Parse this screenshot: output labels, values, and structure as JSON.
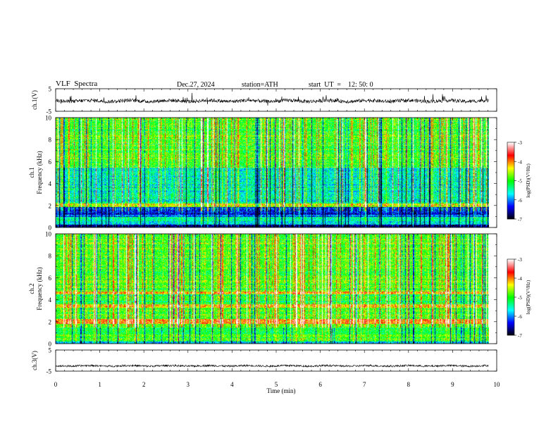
{
  "header": {
    "title": "VLF  Spectra",
    "date": "Dec.27, 2024",
    "station": "station=ATH",
    "start_ut": "start  UT  =    12: 50: 0"
  },
  "chart_data": [
    {
      "type": "line",
      "name": "ch1_waveform",
      "ylabel": "ch.1(V)",
      "y_ticks": [
        "5",
        "-5"
      ],
      "ylim": [
        -5,
        5
      ],
      "xlim": [
        0,
        10
      ],
      "data_extent_min": 9.82,
      "baseline": -0.4
    },
    {
      "type": "heatmap",
      "name": "ch1_spectrogram",
      "ylabel": "Frequency  (kHz)",
      "channel_label": "ch.1",
      "y_ticks": [
        "0",
        "2",
        "4",
        "6",
        "8",
        "10"
      ],
      "ylim": [
        0,
        10
      ],
      "xlim": [
        0,
        10
      ],
      "colorbar_label": "log(PSD)(V²/Hz)",
      "colorbar_ticks": [
        "-3",
        "-4",
        "-5",
        "-6",
        "-7"
      ],
      "colorbar_range": [
        -7,
        -3
      ],
      "features": [
        {
          "desc": "quiet band",
          "freq_khz": [
            1.0,
            1.8
          ],
          "level": -6.2
        },
        {
          "desc": "line",
          "freq_khz": 2.05,
          "level": -4.5
        },
        {
          "desc": "strong band",
          "freq_khz": [
            0.0,
            0.3
          ],
          "level": -7.0
        }
      ]
    },
    {
      "type": "heatmap",
      "name": "ch2_spectrogram",
      "ylabel": "Frequency  (kHz)",
      "channel_label": "ch.2",
      "y_ticks": [
        "0",
        "2",
        "4",
        "6",
        "8",
        "10"
      ],
      "ylim": [
        0,
        10
      ],
      "xlim": [
        0,
        10
      ],
      "colorbar_label": "log(PSD)(V²/Hz)",
      "colorbar_ticks": [
        "-3",
        "-4",
        "-5",
        "-6",
        "-7"
      ],
      "colorbar_range": [
        -7,
        -3
      ],
      "features": [
        {
          "desc": "strong line",
          "freq_khz": 2.0,
          "level": -3.8
        },
        {
          "desc": "line",
          "freq_khz": 4.6,
          "level": -4.2
        },
        {
          "desc": "line",
          "freq_khz": 3.5,
          "level": -4.4
        }
      ]
    },
    {
      "type": "line",
      "name": "ch3_waveform",
      "ylabel": "ch.3(V)",
      "y_ticks": [
        "5",
        "-5"
      ],
      "ylim": [
        -5,
        5
      ],
      "xlim": [
        0,
        10
      ],
      "data_extent_min": 9.82,
      "baseline": -2.5
    }
  ],
  "xaxis": {
    "label": "Time  (min)",
    "ticks": [
      "0",
      "1",
      "2",
      "3",
      "4",
      "5",
      "6",
      "7",
      "8",
      "9",
      "10"
    ]
  },
  "colors": {
    "colormap": [
      "#000000",
      "#0000ff",
      "#00ffff",
      "#00ff00",
      "#ffff00",
      "#ff0000",
      "#ffffff"
    ]
  }
}
